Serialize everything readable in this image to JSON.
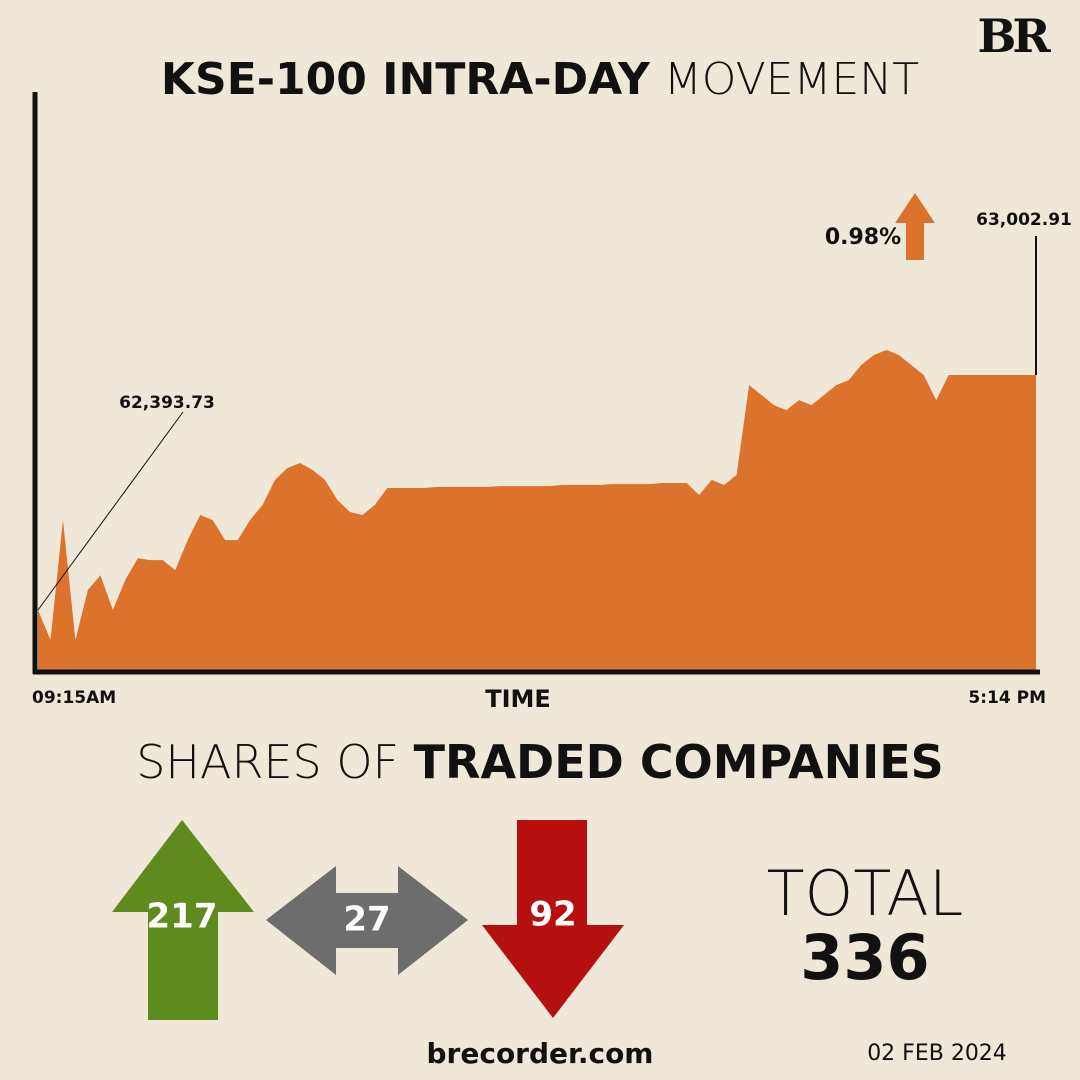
{
  "logo": "BR",
  "chart_data": {
    "type": "area",
    "title_bold": "KSE-100 INTRA-DAY",
    "title_light": "MOVEMENT",
    "xlabel": "TIME",
    "categories": [
      "09:15AM",
      null,
      null,
      null,
      null,
      null,
      null,
      null,
      null,
      null,
      null,
      null,
      null,
      null,
      null,
      null,
      null,
      null,
      null,
      null,
      null,
      null,
      null,
      null,
      null,
      null,
      null,
      null,
      null,
      null,
      null,
      null,
      null,
      null,
      null,
      null,
      null,
      null,
      null,
      null,
      null,
      null,
      null,
      null,
      null,
      null,
      null,
      null,
      null,
      null,
      null,
      null,
      null,
      null,
      null,
      null,
      null,
      null,
      null,
      null,
      null,
      null,
      null,
      null,
      null,
      null,
      null,
      null,
      null,
      null,
      null,
      null,
      null,
      null,
      null,
      null,
      null,
      null,
      null,
      null,
      "5:14 PM"
    ],
    "values": [
      62393.73,
      62316,
      62627,
      62316,
      62446,
      62484,
      62394,
      62472,
      62528,
      62523,
      62523,
      62497,
      62575,
      62640,
      62627,
      62575,
      62575,
      62627,
      62666,
      62731,
      62762,
      62775,
      62757,
      62731,
      62679,
      62648,
      62640,
      62666,
      62710,
      62710,
      62710,
      62710,
      62713,
      62713,
      62713,
      62713,
      62713,
      62715,
      62715,
      62715,
      62715,
      62715,
      62718,
      62718,
      62718,
      62718,
      62720,
      62720,
      62720,
      62720,
      62723,
      62723,
      62723,
      62692,
      62731,
      62718,
      62744,
      62977,
      62951,
      62925,
      62912,
      62938,
      62925,
      62951,
      62977,
      62990,
      63029,
      63055,
      63068,
      63055,
      63029,
      63003,
      62938,
      63003,
      63003,
      63003,
      63003,
      63003,
      63003,
      63003,
      63002.91
    ],
    "value_labels": [
      "62,393.73",
      null,
      null,
      null,
      null,
      null,
      null,
      null,
      null,
      null,
      null,
      null,
      null,
      null,
      null,
      null,
      null,
      null,
      null,
      null,
      null,
      null,
      null,
      null,
      null,
      null,
      null,
      null,
      null,
      null,
      null,
      null,
      null,
      null,
      null,
      null,
      null,
      null,
      null,
      null,
      null,
      null,
      null,
      null,
      null,
      null,
      null,
      null,
      null,
      null,
      null,
      null,
      null,
      null,
      null,
      null,
      null,
      null,
      null,
      null,
      null,
      null,
      null,
      null,
      null,
      null,
      null,
      null,
      null,
      null,
      null,
      null,
      null,
      null,
      null,
      null,
      null,
      null,
      null,
      null,
      "63,002.91"
    ],
    "color": "#db732c",
    "ylim": [
      62233,
      63729
    ],
    "change": {
      "value": 0.98,
      "label": "0.98%"
    }
  },
  "shares": {
    "title_light": "SHARES OF",
    "title_bold": "TRADED COMPANIES",
    "up": 217,
    "unchanged": 27,
    "down": 92,
    "total_label": "TOTAL",
    "total": 336
  },
  "footer": {
    "site": "brecorder.com",
    "date": "02 FEB 2024"
  }
}
